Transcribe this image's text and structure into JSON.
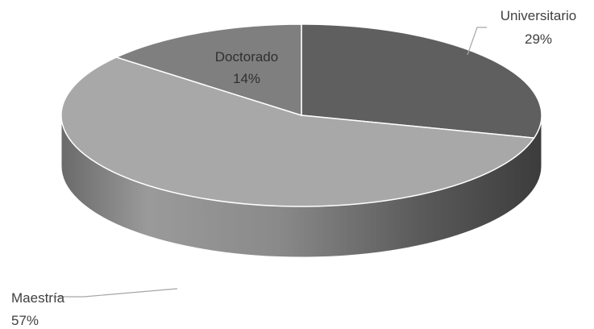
{
  "chart_data": {
    "type": "pie",
    "style": "3d",
    "title": "",
    "slices": [
      {
        "label": "Universitario",
        "percent_label": "29%",
        "value": 29,
        "color": "#5f5f5f"
      },
      {
        "label": "Maestría",
        "percent_label": "57%",
        "value": 57,
        "color": "#a8a8a8"
      },
      {
        "label": "Doctorado",
        "percent_label": "14%",
        "value": 14,
        "color": "#7f7f7f"
      }
    ]
  }
}
